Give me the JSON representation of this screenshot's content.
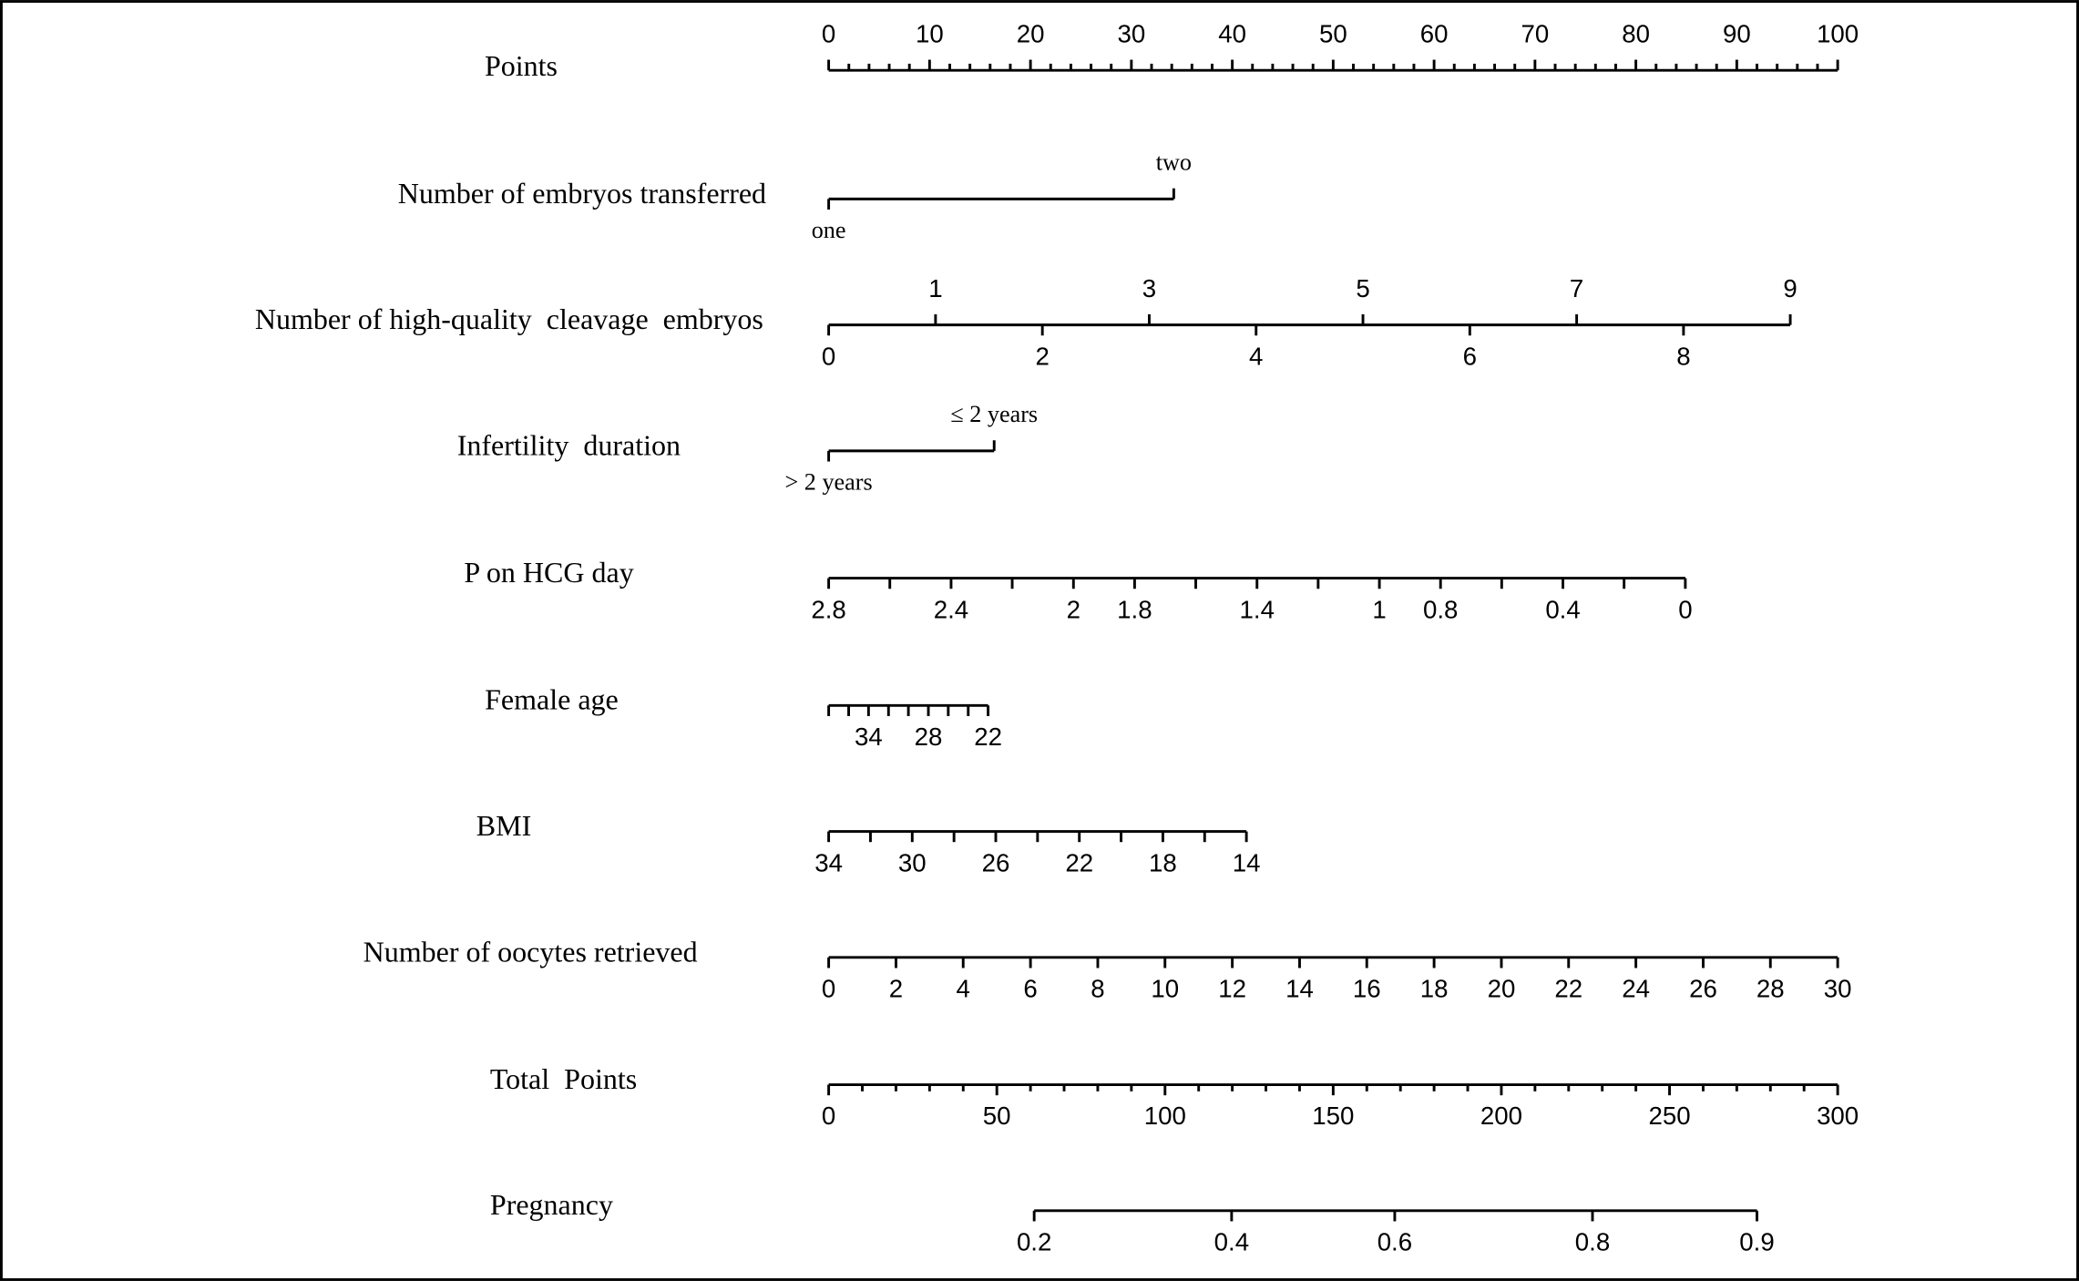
{
  "chart_data": {
    "type": "nomogram",
    "rows": [
      {
        "label": "Points",
        "xlim": [
          0,
          100
        ],
        "ticks": [
          0,
          10,
          20,
          30,
          40,
          50,
          60,
          70,
          80,
          90,
          100
        ],
        "minor_ticks": [
          2,
          4,
          6,
          8,
          12,
          14,
          16,
          18,
          22,
          24,
          26,
          28,
          32,
          34,
          36,
          38,
          42,
          44,
          46,
          48,
          52,
          54,
          56,
          58,
          62,
          64,
          66,
          68,
          72,
          74,
          76,
          78,
          82,
          84,
          86,
          88,
          92,
          94,
          96,
          98
        ]
      },
      {
        "label": "Number of embryos transferred",
        "ticks": [
          "one",
          "two"
        ],
        "points": [
          0,
          34.2
        ]
      },
      {
        "label": "Number of high-quality  cleavage  embryos",
        "ticks": [
          0,
          1,
          2,
          3,
          4,
          5,
          6,
          7,
          8,
          9
        ],
        "points": [
          0,
          10.59,
          21.18,
          31.77,
          42.36,
          52.95,
          63.54,
          74.13,
          84.72,
          95.3
        ]
      },
      {
        "label": "Infertility  duration",
        "ticks": [
          "> 2 years",
          "≤ 2 years"
        ],
        "points": [
          0,
          16.4
        ]
      },
      {
        "label": "P on HCG day",
        "ticks": [
          2.8,
          2.4,
          2,
          1.8,
          1.4,
          1,
          0.8,
          0.4,
          0
        ],
        "points": [
          0,
          12.13,
          24.26,
          30.32,
          42.45,
          54.58,
          60.64,
          72.77,
          84.9
        ],
        "minor_ticks": [
          2.6,
          2.2,
          1.6,
          1.2,
          0.6,
          0.2
        ],
        "minor_points": [
          6.06,
          18.19,
          36.38,
          48.51,
          66.7,
          78.83
        ]
      },
      {
        "label": "Female age",
        "ticks": [
          34,
          28,
          22
        ],
        "points": [
          3.95,
          9.88,
          15.8
        ],
        "minor_ticks": [
          38,
          36,
          32,
          30,
          26,
          24
        ],
        "minor_points": [
          0,
          1.98,
          5.93,
          7.9,
          11.85,
          13.83
        ]
      },
      {
        "label": "BMI",
        "ticks": [
          34,
          30,
          26,
          22,
          18,
          14
        ],
        "points": [
          0,
          8.28,
          16.56,
          24.84,
          33.12,
          41.4
        ],
        "minor_ticks": [
          32,
          28,
          24,
          20,
          16
        ],
        "minor_points": [
          4.14,
          12.42,
          20.7,
          28.98,
          37.26
        ]
      },
      {
        "label": "Number of oocytes retrieved",
        "ticks": [
          0,
          2,
          4,
          6,
          8,
          10,
          12,
          14,
          16,
          18,
          20,
          22,
          24,
          26,
          28,
          30
        ],
        "points": [
          0,
          6.67,
          13.33,
          20,
          26.67,
          33.33,
          40,
          46.67,
          53.33,
          60,
          66.67,
          73.33,
          80,
          86.67,
          93.33,
          100
        ]
      },
      {
        "label": "Total  Points",
        "xlim": [
          0,
          300
        ],
        "ticks": [
          0,
          50,
          100,
          150,
          200,
          250,
          300
        ],
        "minor_ticks": [
          10,
          20,
          30,
          40,
          60,
          70,
          80,
          90,
          110,
          120,
          130,
          140,
          160,
          170,
          180,
          190,
          210,
          220,
          230,
          240,
          260,
          270,
          280,
          290
        ]
      },
      {
        "label": "Pregnancy",
        "ticks": [
          0.2,
          0.4,
          0.6,
          0.8,
          0.9
        ],
        "total_points": [
          61.1,
          119.8,
          168.3,
          227.1,
          276.0
        ]
      }
    ]
  }
}
